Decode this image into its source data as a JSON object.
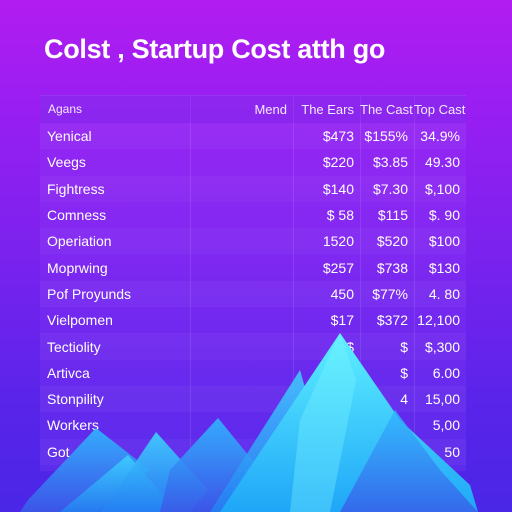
{
  "title": "Colst , Startup Cost atth go",
  "table": {
    "headers": [
      "Agans",
      "Mend",
      "The Ears",
      "The Cast",
      "Top Cast"
    ],
    "rows": [
      {
        "label": "Yenical",
        "mend": "",
        "ears": "$473",
        "cast": "$155%",
        "top": "34.9%"
      },
      {
        "label": "Veegs",
        "mend": "",
        "ears": "$220",
        "cast": "$3.85",
        "top": "49.30"
      },
      {
        "label": "Fightress",
        "mend": "",
        "ears": "$140",
        "cast": "$7.30",
        "top": "$,100"
      },
      {
        "label": "Comness",
        "mend": "",
        "ears": "$ 58",
        "cast": "$115",
        "top": "$. 90"
      },
      {
        "label": "Operiation",
        "mend": "",
        "ears": "1520",
        "cast": "$520",
        "top": "$100"
      },
      {
        "label": "Moprwing",
        "mend": "",
        "ears": "$257",
        "cast": "$738",
        "top": "$130"
      },
      {
        "label": "Pof Proyunds",
        "mend": "",
        "ears": "450",
        "cast": "$77%",
        "top": "4. 80"
      },
      {
        "label": "Vielpomen",
        "mend": "",
        "ears": "$17",
        "cast": "$372",
        "top": "12,100"
      },
      {
        "label": "Tectiolity",
        "mend": "",
        "ears": "$",
        "cast": "$",
        "top": "$,300"
      },
      {
        "label": "Artivca",
        "mend": "",
        "ears": "$",
        "cast": "$",
        "top": "6.00"
      },
      {
        "label": "Stonpility",
        "mend": "",
        "ears": "",
        "cast": "4",
        "top": "15,00"
      },
      {
        "label": "Workers",
        "mend": "",
        "ears": "",
        "cast": "",
        "top": "5,00"
      },
      {
        "label": "Got",
        "mend": "",
        "ears": "",
        "cast": "",
        "top": "50"
      }
    ]
  },
  "colors": {
    "background_top": "#b21cf0",
    "background_bottom": "#4a26e6",
    "peak_light": "#49e3ff",
    "peak_mid": "#1fb8ff",
    "peak_dark": "#2c8cf5"
  }
}
